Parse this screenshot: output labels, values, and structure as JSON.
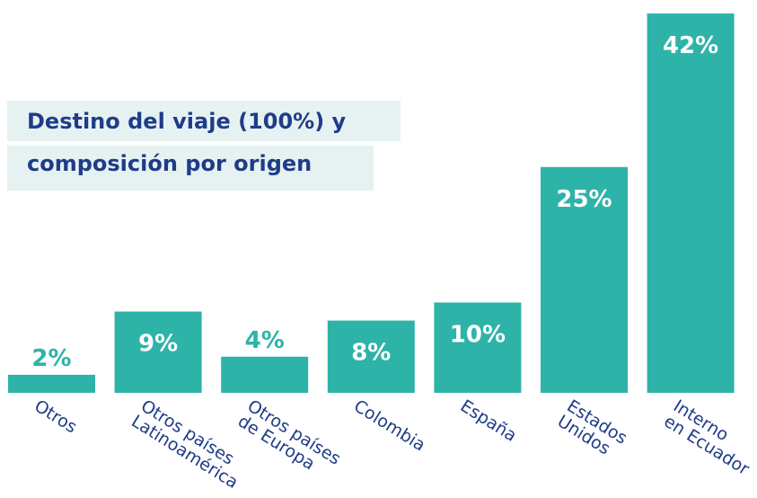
{
  "chart_data": {
    "type": "bar",
    "title": "Destino del viaje (100%) y\ncomposición por origen",
    "categories": [
      "Otros",
      "Otros países\nLatinoamérica",
      "Otros países\nde Europa",
      "Colombia",
      "España",
      "Estados\nUnidos",
      "Interno\nen Ecuador"
    ],
    "values": [
      2,
      9,
      4,
      8,
      10,
      25,
      42
    ],
    "value_labels": [
      "2%",
      "9%",
      "4%",
      "8%",
      "10%",
      "25%",
      "42%"
    ],
    "color": "#2eb3a9"
  }
}
